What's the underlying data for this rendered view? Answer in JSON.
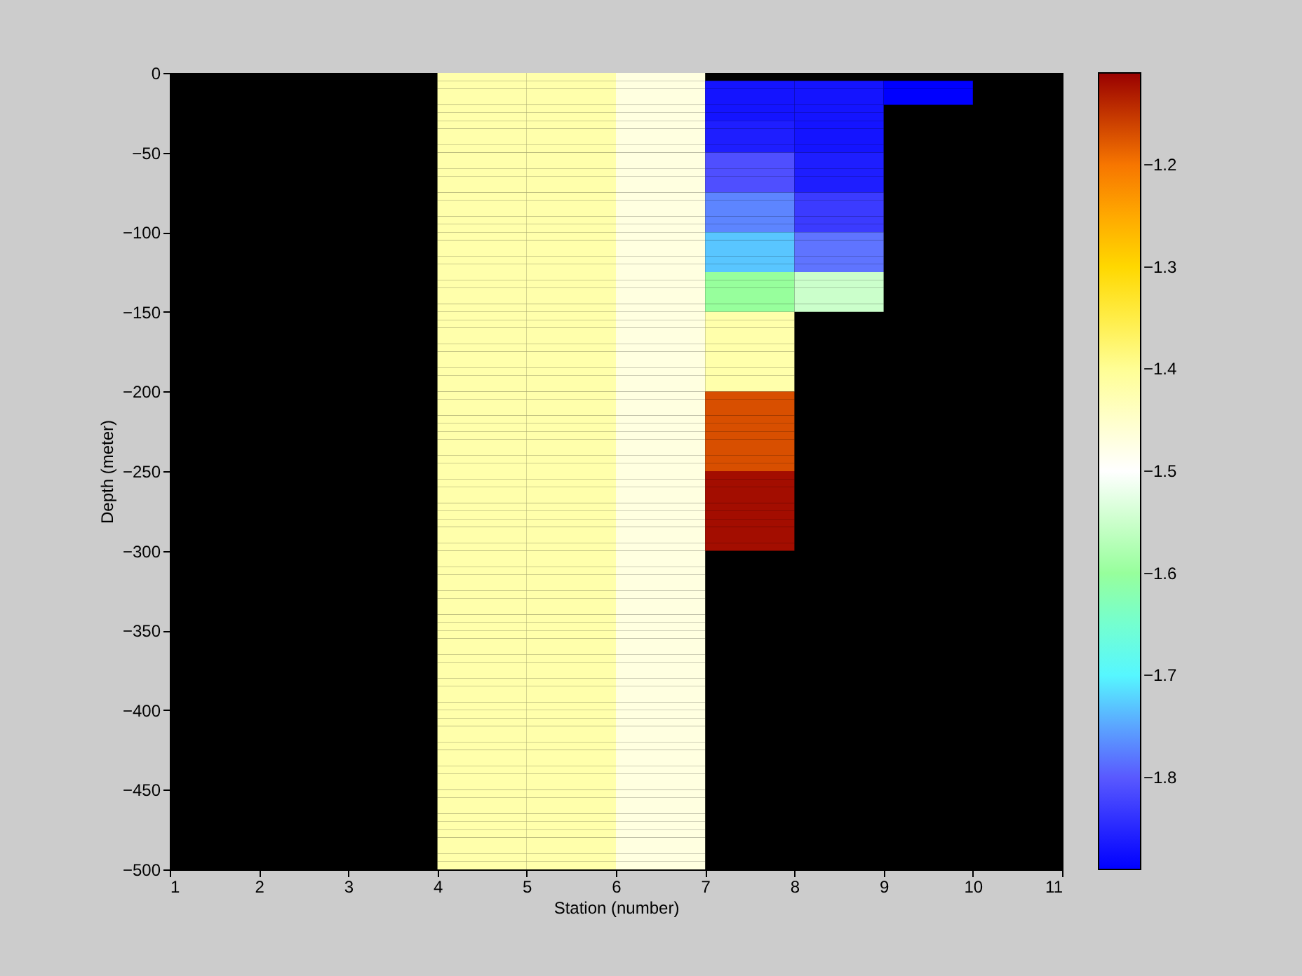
{
  "chart_data": {
    "type": "heatmap",
    "xlabel": "Station (number)",
    "ylabel": "Depth (meter)",
    "xlim": [
      1,
      11
    ],
    "xticks": [
      1,
      2,
      3,
      4,
      5,
      6,
      7,
      8,
      9,
      10,
      11
    ],
    "ylim": [
      -500,
      0
    ],
    "yticks": [
      0,
      -50,
      -100,
      -150,
      -200,
      -250,
      -300,
      -350,
      -400,
      -450,
      -500
    ],
    "clim": [
      -1.89,
      -1.11
    ],
    "cticks": [
      -1.2,
      -1.3,
      -1.4,
      -1.5,
      -1.6,
      -1.7,
      -1.8
    ],
    "colors": [
      "#0000ff",
      "#6060ff",
      "#55ffff",
      "#99ff99",
      "#ffffff",
      "#ffff99",
      "#ffdd00",
      "#ff8000",
      "#990000"
    ],
    "grid": false,
    "cells": [
      [
        null,
        null,
        null,
        -1.42,
        -1.42,
        -1.47,
        null,
        null,
        null,
        null
      ],
      [
        null,
        null,
        null,
        -1.42,
        -1.42,
        -1.47,
        -1.87,
        -1.87,
        -1.89,
        null
      ],
      [
        null,
        null,
        null,
        -1.42,
        -1.42,
        -1.47,
        -1.87,
        -1.87,
        -1.89,
        null
      ],
      [
        null,
        null,
        null,
        -1.42,
        -1.42,
        -1.47,
        -1.87,
        -1.87,
        -1.89,
        null
      ],
      [
        null,
        null,
        null,
        -1.42,
        -1.42,
        -1.47,
        -1.87,
        -1.87,
        null,
        null
      ],
      [
        null,
        null,
        null,
        -1.42,
        -1.42,
        -1.47,
        -1.87,
        -1.87,
        null,
        null
      ],
      [
        null,
        null,
        null,
        -1.42,
        -1.42,
        -1.47,
        -1.86,
        -1.87,
        null,
        null
      ],
      [
        null,
        null,
        null,
        -1.42,
        -1.42,
        -1.47,
        -1.86,
        -1.87,
        null,
        null
      ],
      [
        null,
        null,
        null,
        -1.42,
        -1.42,
        -1.47,
        -1.86,
        -1.87,
        null,
        null
      ],
      [
        null,
        null,
        null,
        -1.42,
        -1.42,
        -1.47,
        -1.86,
        -1.87,
        null,
        null
      ],
      [
        null,
        null,
        null,
        -1.42,
        -1.42,
        -1.47,
        -1.81,
        -1.86,
        null,
        null
      ],
      [
        null,
        null,
        null,
        -1.42,
        -1.42,
        -1.47,
        -1.81,
        -1.86,
        null,
        null
      ],
      [
        null,
        null,
        null,
        -1.42,
        -1.42,
        -1.47,
        -1.81,
        -1.86,
        null,
        null
      ],
      [
        null,
        null,
        null,
        -1.42,
        -1.42,
        -1.47,
        -1.81,
        -1.86,
        null,
        null
      ],
      [
        null,
        null,
        null,
        -1.42,
        -1.42,
        -1.47,
        -1.81,
        -1.86,
        null,
        null
      ],
      [
        null,
        null,
        null,
        -1.42,
        -1.42,
        -1.47,
        -1.77,
        -1.83,
        null,
        null
      ],
      [
        null,
        null,
        null,
        -1.42,
        -1.42,
        -1.47,
        -1.77,
        -1.83,
        null,
        null
      ],
      [
        null,
        null,
        null,
        -1.42,
        -1.42,
        -1.47,
        -1.77,
        -1.83,
        null,
        null
      ],
      [
        null,
        null,
        null,
        -1.42,
        -1.42,
        -1.47,
        -1.77,
        -1.83,
        null,
        null
      ],
      [
        null,
        null,
        null,
        -1.42,
        -1.42,
        -1.47,
        -1.77,
        -1.83,
        null,
        null
      ],
      [
        null,
        null,
        null,
        -1.42,
        -1.42,
        -1.47,
        -1.73,
        -1.78,
        null,
        null
      ],
      [
        null,
        null,
        null,
        -1.42,
        -1.42,
        -1.47,
        -1.73,
        -1.78,
        null,
        null
      ],
      [
        null,
        null,
        null,
        -1.42,
        -1.42,
        -1.47,
        -1.73,
        -1.78,
        null,
        null
      ],
      [
        null,
        null,
        null,
        -1.42,
        -1.42,
        -1.47,
        -1.73,
        -1.78,
        null,
        null
      ],
      [
        null,
        null,
        null,
        -1.42,
        -1.42,
        -1.47,
        -1.73,
        -1.78,
        null,
        null
      ],
      [
        null,
        null,
        null,
        -1.42,
        -1.42,
        -1.47,
        -1.6,
        -1.55,
        null,
        null
      ],
      [
        null,
        null,
        null,
        -1.42,
        -1.42,
        -1.47,
        -1.6,
        -1.55,
        null,
        null
      ],
      [
        null,
        null,
        null,
        -1.42,
        -1.42,
        -1.47,
        -1.6,
        -1.55,
        null,
        null
      ],
      [
        null,
        null,
        null,
        -1.42,
        -1.42,
        -1.47,
        -1.6,
        -1.55,
        null,
        null
      ],
      [
        null,
        null,
        null,
        -1.42,
        -1.42,
        -1.47,
        -1.6,
        -1.55,
        null,
        null
      ],
      [
        null,
        null,
        null,
        -1.42,
        -1.42,
        -1.47,
        -1.42,
        null,
        null,
        null
      ],
      [
        null,
        null,
        null,
        -1.42,
        -1.42,
        -1.47,
        -1.42,
        null,
        null,
        null
      ],
      [
        null,
        null,
        null,
        -1.42,
        -1.42,
        -1.47,
        -1.42,
        null,
        null,
        null
      ],
      [
        null,
        null,
        null,
        -1.42,
        -1.42,
        -1.47,
        -1.42,
        null,
        null,
        null
      ],
      [
        null,
        null,
        null,
        -1.42,
        -1.42,
        -1.47,
        -1.42,
        null,
        null,
        null
      ],
      [
        null,
        null,
        null,
        -1.42,
        -1.42,
        -1.47,
        -1.42,
        null,
        null,
        null
      ],
      [
        null,
        null,
        null,
        -1.42,
        -1.42,
        -1.47,
        -1.42,
        null,
        null,
        null
      ],
      [
        null,
        null,
        null,
        -1.42,
        -1.42,
        -1.47,
        -1.42,
        null,
        null,
        null
      ],
      [
        null,
        null,
        null,
        -1.42,
        -1.42,
        -1.47,
        -1.42,
        null,
        null,
        null
      ],
      [
        null,
        null,
        null,
        -1.42,
        -1.42,
        -1.47,
        -1.42,
        null,
        null,
        null
      ],
      [
        null,
        null,
        null,
        -1.42,
        -1.42,
        -1.47,
        -1.17,
        null,
        null,
        null
      ],
      [
        null,
        null,
        null,
        -1.42,
        -1.42,
        -1.47,
        -1.17,
        null,
        null,
        null
      ],
      [
        null,
        null,
        null,
        -1.42,
        -1.42,
        -1.47,
        -1.17,
        null,
        null,
        null
      ],
      [
        null,
        null,
        null,
        -1.42,
        -1.42,
        -1.47,
        -1.17,
        null,
        null,
        null
      ],
      [
        null,
        null,
        null,
        -1.42,
        -1.42,
        -1.47,
        -1.17,
        null,
        null,
        null
      ],
      [
        null,
        null,
        null,
        -1.42,
        -1.42,
        -1.47,
        -1.17,
        null,
        null,
        null
      ],
      [
        null,
        null,
        null,
        -1.42,
        -1.42,
        -1.47,
        -1.17,
        null,
        null,
        null
      ],
      [
        null,
        null,
        null,
        -1.42,
        -1.42,
        -1.47,
        -1.17,
        null,
        null,
        null
      ],
      [
        null,
        null,
        null,
        -1.42,
        -1.42,
        -1.47,
        -1.17,
        null,
        null,
        null
      ],
      [
        null,
        null,
        null,
        -1.42,
        -1.42,
        -1.47,
        -1.17,
        null,
        null,
        null
      ],
      [
        null,
        null,
        null,
        -1.42,
        -1.42,
        -1.47,
        -1.12,
        null,
        null,
        null
      ],
      [
        null,
        null,
        null,
        -1.42,
        -1.42,
        -1.47,
        -1.12,
        null,
        null,
        null
      ],
      [
        null,
        null,
        null,
        -1.42,
        -1.42,
        -1.47,
        -1.12,
        null,
        null,
        null
      ],
      [
        null,
        null,
        null,
        -1.42,
        -1.42,
        -1.47,
        -1.12,
        null,
        null,
        null
      ],
      [
        null,
        null,
        null,
        -1.42,
        -1.42,
        -1.47,
        -1.12,
        null,
        null,
        null
      ],
      [
        null,
        null,
        null,
        -1.42,
        -1.42,
        -1.47,
        -1.12,
        null,
        null,
        null
      ],
      [
        null,
        null,
        null,
        -1.42,
        -1.42,
        -1.47,
        -1.12,
        null,
        null,
        null
      ],
      [
        null,
        null,
        null,
        -1.42,
        -1.42,
        -1.47,
        -1.12,
        null,
        null,
        null
      ],
      [
        null,
        null,
        null,
        -1.42,
        -1.42,
        -1.47,
        -1.12,
        null,
        null,
        null
      ],
      [
        null,
        null,
        null,
        -1.42,
        -1.42,
        -1.47,
        -1.12,
        null,
        null,
        null
      ],
      [
        null,
        null,
        null,
        -1.42,
        -1.42,
        -1.47,
        null,
        null,
        null,
        null
      ],
      [
        null,
        null,
        null,
        -1.42,
        -1.42,
        -1.47,
        null,
        null,
        null,
        null
      ],
      [
        null,
        null,
        null,
        -1.42,
        -1.42,
        -1.47,
        null,
        null,
        null,
        null
      ],
      [
        null,
        null,
        null,
        -1.42,
        -1.42,
        -1.47,
        null,
        null,
        null,
        null
      ],
      [
        null,
        null,
        null,
        -1.42,
        -1.42,
        -1.47,
        null,
        null,
        null,
        null
      ],
      [
        null,
        null,
        null,
        -1.42,
        -1.42,
        -1.47,
        null,
        null,
        null,
        null
      ],
      [
        null,
        null,
        null,
        -1.42,
        -1.42,
        -1.47,
        null,
        null,
        null,
        null
      ],
      [
        null,
        null,
        null,
        -1.42,
        -1.42,
        -1.47,
        null,
        null,
        null,
        null
      ],
      [
        null,
        null,
        null,
        -1.42,
        -1.42,
        -1.47,
        null,
        null,
        null,
        null
      ],
      [
        null,
        null,
        null,
        -1.42,
        -1.42,
        -1.47,
        null,
        null,
        null,
        null
      ],
      [
        null,
        null,
        null,
        -1.42,
        -1.42,
        -1.47,
        null,
        null,
        null,
        null
      ],
      [
        null,
        null,
        null,
        -1.42,
        -1.42,
        -1.47,
        null,
        null,
        null,
        null
      ],
      [
        null,
        null,
        null,
        -1.42,
        -1.42,
        -1.47,
        null,
        null,
        null,
        null
      ],
      [
        null,
        null,
        null,
        -1.42,
        -1.42,
        -1.47,
        null,
        null,
        null,
        null
      ],
      [
        null,
        null,
        null,
        -1.42,
        -1.42,
        -1.47,
        null,
        null,
        null,
        null
      ],
      [
        null,
        null,
        null,
        -1.42,
        -1.42,
        -1.47,
        null,
        null,
        null,
        null
      ],
      [
        null,
        null,
        null,
        -1.42,
        -1.42,
        -1.47,
        null,
        null,
        null,
        null
      ],
      [
        null,
        null,
        null,
        -1.42,
        -1.42,
        -1.47,
        null,
        null,
        null,
        null
      ],
      [
        null,
        null,
        null,
        -1.42,
        -1.42,
        -1.47,
        null,
        null,
        null,
        null
      ],
      [
        null,
        null,
        null,
        -1.42,
        -1.42,
        -1.47,
        null,
        null,
        null,
        null
      ],
      [
        null,
        null,
        null,
        -1.42,
        -1.42,
        -1.47,
        null,
        null,
        null,
        null
      ],
      [
        null,
        null,
        null,
        -1.42,
        -1.42,
        -1.47,
        null,
        null,
        null,
        null
      ],
      [
        null,
        null,
        null,
        -1.42,
        -1.42,
        -1.47,
        null,
        null,
        null,
        null
      ],
      [
        null,
        null,
        null,
        -1.42,
        -1.42,
        -1.47,
        null,
        null,
        null,
        null
      ],
      [
        null,
        null,
        null,
        -1.42,
        -1.42,
        -1.47,
        null,
        null,
        null,
        null
      ],
      [
        null,
        null,
        null,
        -1.42,
        -1.42,
        -1.47,
        null,
        null,
        null,
        null
      ],
      [
        null,
        null,
        null,
        -1.42,
        -1.42,
        -1.47,
        null,
        null,
        null,
        null
      ],
      [
        null,
        null,
        null,
        -1.42,
        -1.42,
        -1.47,
        null,
        null,
        null,
        null
      ],
      [
        null,
        null,
        null,
        -1.42,
        -1.42,
        -1.47,
        null,
        null,
        null,
        null
      ],
      [
        null,
        null,
        null,
        -1.42,
        -1.42,
        -1.47,
        null,
        null,
        null,
        null
      ],
      [
        null,
        null,
        null,
        -1.42,
        -1.42,
        -1.47,
        null,
        null,
        null,
        null
      ],
      [
        null,
        null,
        null,
        -1.42,
        -1.42,
        -1.47,
        null,
        null,
        null,
        null
      ],
      [
        null,
        null,
        null,
        -1.42,
        -1.42,
        -1.47,
        null,
        null,
        null,
        null
      ],
      [
        null,
        null,
        null,
        -1.42,
        -1.42,
        -1.47,
        null,
        null,
        null,
        null
      ],
      [
        null,
        null,
        null,
        -1.42,
        -1.42,
        -1.47,
        null,
        null,
        null,
        null
      ],
      [
        null,
        null,
        null,
        -1.42,
        -1.42,
        -1.47,
        null,
        null,
        null,
        null
      ],
      [
        null,
        null,
        null,
        -1.42,
        -1.42,
        -1.47,
        null,
        null,
        null,
        null
      ],
      [
        null,
        null,
        null,
        -1.42,
        -1.42,
        -1.47,
        null,
        null,
        null,
        null
      ],
      [
        null,
        null,
        null,
        -1.42,
        -1.42,
        -1.47,
        null,
        null,
        null,
        null
      ],
      [
        null,
        null,
        null,
        -1.42,
        -1.42,
        -1.47,
        null,
        null,
        null,
        null
      ]
    ]
  }
}
